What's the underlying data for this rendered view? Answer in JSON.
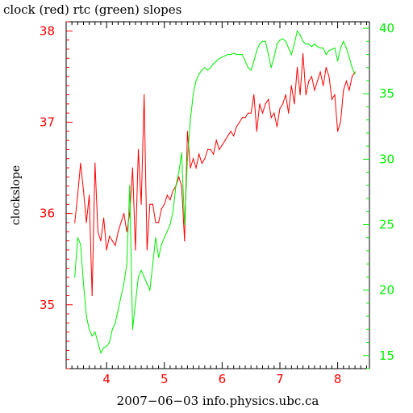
{
  "chart_data": {
    "type": "line",
    "title": "clock (red) rtc (green) slopes",
    "xlabel": "2007−06−03 info.physics.ubc.ca",
    "ylabel": "clockslope",
    "xlim": [
      3.3,
      8.55
    ],
    "ylim_left": [
      34.3,
      38.1
    ],
    "ylim_right": [
      14,
      40.5
    ],
    "x_ticks": [
      4,
      5,
      6,
      7,
      8
    ],
    "x_tick_labels": [
      "4",
      "5",
      "6",
      "7",
      "8"
    ],
    "y_left_ticks": [
      35,
      36,
      37,
      38
    ],
    "y_left_tick_labels": [
      "35",
      "36",
      "37",
      "38"
    ],
    "y_right_ticks": [
      15,
      20,
      25,
      30,
      35,
      40
    ],
    "y_right_tick_labels": [
      "15",
      "20",
      "25",
      "30",
      "35",
      "40"
    ],
    "grid": false,
    "colors": {
      "clock": "#ff0000",
      "rtc": "#00ee00",
      "axes": "#000000"
    },
    "series": [
      {
        "axis": "left",
        "color": "#ff0000",
        "x": [
          3.45,
          3.5,
          3.55,
          3.6,
          3.65,
          3.7,
          3.75,
          3.8,
          3.85,
          3.9,
          3.95,
          4.0,
          4.05,
          4.1,
          4.15,
          4.2,
          4.25,
          4.3,
          4.35,
          4.4,
          4.45,
          4.5,
          4.55,
          4.6,
          4.65,
          4.7,
          4.75,
          4.8,
          4.85,
          4.9,
          4.95,
          5.0,
          5.05,
          5.1,
          5.15,
          5.2,
          5.25,
          5.3,
          5.35,
          5.4,
          5.45,
          5.5,
          5.55,
          5.6,
          5.65,
          5.7,
          5.75,
          5.8,
          5.85,
          5.9,
          5.95,
          6.0,
          6.05,
          6.1,
          6.15,
          6.2,
          6.25,
          6.3,
          6.35,
          6.4,
          6.45,
          6.5,
          6.55,
          6.6,
          6.65,
          6.7,
          6.75,
          6.8,
          6.85,
          6.9,
          6.95,
          7.0,
          7.05,
          7.1,
          7.15,
          7.2,
          7.25,
          7.3,
          7.35,
          7.4,
          7.45,
          7.5,
          7.55,
          7.6,
          7.65,
          7.7,
          7.75,
          7.8,
          7.85,
          7.9,
          7.95,
          8.0,
          8.05,
          8.1,
          8.15,
          8.2,
          8.25,
          8.3
        ],
        "y": [
          35.9,
          36.2,
          36.55,
          36.25,
          35.9,
          36.2,
          35.1,
          36.55,
          35.8,
          35.7,
          35.95,
          35.6,
          35.75,
          35.7,
          35.65,
          35.8,
          35.9,
          36.0,
          35.8,
          36.0,
          36.5,
          35.6,
          36.7,
          36.1,
          37.3,
          35.6,
          36.1,
          36.1,
          35.9,
          35.9,
          36.05,
          36.1,
          36.2,
          36.15,
          36.25,
          36.3,
          36.4,
          36.3,
          35.7,
          36.9,
          36.5,
          36.6,
          36.5,
          36.65,
          36.55,
          36.6,
          36.7,
          36.7,
          36.65,
          36.8,
          36.7,
          36.75,
          36.8,
          36.85,
          36.9,
          36.85,
          36.95,
          37.0,
          37.05,
          37.05,
          37.1,
          37.1,
          37.3,
          36.9,
          37.2,
          37.1,
          37.2,
          37.25,
          37.05,
          37.1,
          36.95,
          37.15,
          37.2,
          37.3,
          37.1,
          37.4,
          37.2,
          37.6,
          37.3,
          37.75,
          37.3,
          37.45,
          37.5,
          37.35,
          37.45,
          37.55,
          37.4,
          37.6,
          37.5,
          37.25,
          37.3,
          36.9,
          37.0,
          37.35,
          37.45,
          37.35,
          37.5,
          37.55
        ]
      },
      {
        "axis": "right",
        "color": "#00ee00",
        "x": [
          3.45,
          3.5,
          3.55,
          3.6,
          3.65,
          3.7,
          3.75,
          3.8,
          3.85,
          3.9,
          3.95,
          4.0,
          4.05,
          4.1,
          4.15,
          4.2,
          4.25,
          4.3,
          4.35,
          4.4,
          4.45,
          4.5,
          4.55,
          4.6,
          4.65,
          4.7,
          4.75,
          4.8,
          4.85,
          4.9,
          4.95,
          5.0,
          5.05,
          5.1,
          5.15,
          5.2,
          5.25,
          5.3,
          5.35,
          5.4,
          5.45,
          5.5,
          5.55,
          5.6,
          5.65,
          5.7,
          5.75,
          5.8,
          5.85,
          5.9,
          5.95,
          6.0,
          6.05,
          6.1,
          6.15,
          6.2,
          6.25,
          6.3,
          6.35,
          6.4,
          6.45,
          6.5,
          6.55,
          6.6,
          6.65,
          6.7,
          6.75,
          6.8,
          6.85,
          6.9,
          6.95,
          7.0,
          7.05,
          7.1,
          7.15,
          7.2,
          7.25,
          7.3,
          7.35,
          7.4,
          7.45,
          7.5,
          7.55,
          7.6,
          7.65,
          7.7,
          7.75,
          7.8,
          7.85,
          7.9,
          7.95,
          8.0,
          8.05,
          8.1,
          8.15,
          8.2,
          8.25,
          8.3
        ],
        "y": [
          21.0,
          24.0,
          23.5,
          20.5,
          18.0,
          17.0,
          16.5,
          16.8,
          16.0,
          15.2,
          15.6,
          15.7,
          16.0,
          17.0,
          17.5,
          18.5,
          19.5,
          20.5,
          22.0,
          28.0,
          17.0,
          19.0,
          21.0,
          21.5,
          21.0,
          20.5,
          20.0,
          22.0,
          24.0,
          22.5,
          23.5,
          24.0,
          24.5,
          25.0,
          26.0,
          28.0,
          29.0,
          30.5,
          25.0,
          30.0,
          33.0,
          35.0,
          36.0,
          36.5,
          36.8,
          37.0,
          36.8,
          37.0,
          37.3,
          37.5,
          37.7,
          37.8,
          37.9,
          38.0,
          38.0,
          38.1,
          38.0,
          38.0,
          38.0,
          37.5,
          37.0,
          36.8,
          37.5,
          38.3,
          38.8,
          39.0,
          39.0,
          38.0,
          37.0,
          37.8,
          38.8,
          39.1,
          39.2,
          39.0,
          38.5,
          38.0,
          38.8,
          39.8,
          39.5,
          39.0,
          38.8,
          38.8,
          38.6,
          38.8,
          38.6,
          38.5,
          38.5,
          38.0,
          38.3,
          38.4,
          38.5,
          37.5,
          38.5,
          39.0,
          38.5,
          37.8,
          37.0,
          36.5
        ]
      }
    ]
  }
}
